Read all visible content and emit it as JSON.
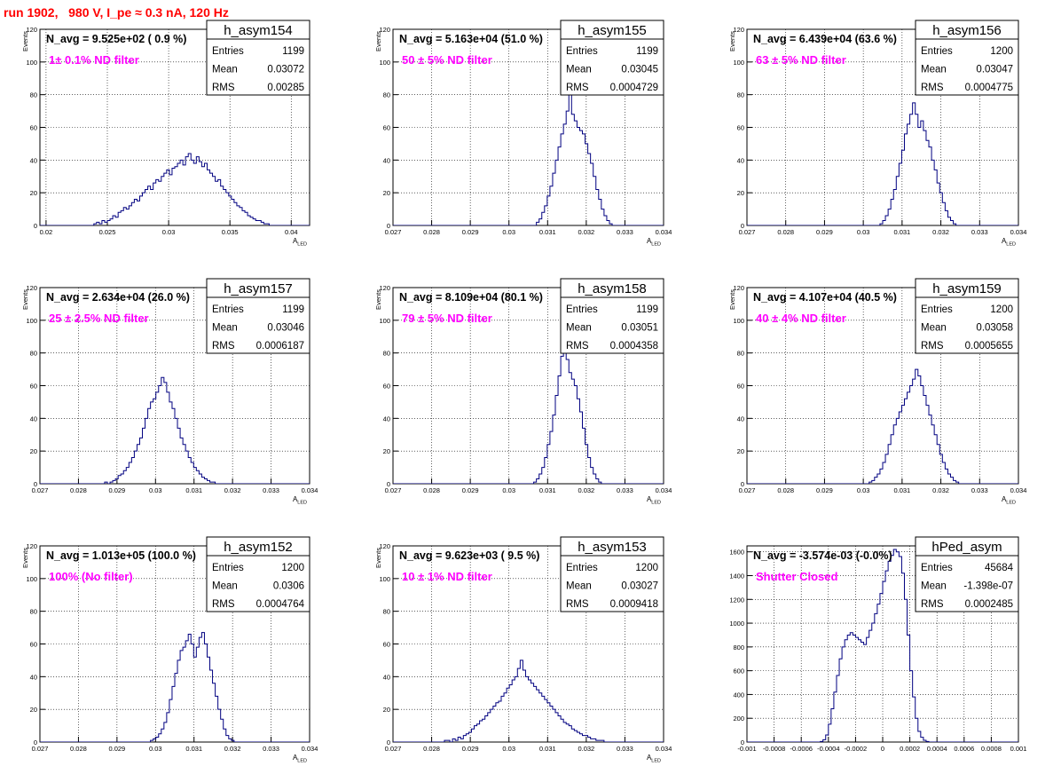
{
  "page": {
    "title": "run 1902,   980 V, I_pe ≈ 0.3 nA, 120 Hz"
  },
  "colors": {
    "histogram": "#000080",
    "filter_label": "#ff00ff",
    "title_text": "#ff0000",
    "grid": "#000000"
  },
  "chart_data": [
    {
      "type": "bar",
      "hist_name": "h_asym154",
      "stats": {
        "Entries": "1199",
        "Mean": "0.03072",
        "RMS": "0.00285"
      },
      "navg": "N_avg = 9.525e+02 ( 0.9 %)",
      "filter": "1± 0.1% ND filter",
      "xlabel": "A_LED",
      "ylabel": "Events",
      "xlim": [
        0.0195,
        0.0415
      ],
      "ylim": [
        0,
        120
      ],
      "xticks": [
        0.02,
        0.025,
        0.03,
        0.035,
        0.04
      ],
      "xtick_labels": [
        "0.02",
        "0.025",
        "0.03",
        "0.035",
        "0.04"
      ],
      "yticks": [
        0,
        20,
        40,
        60,
        80,
        100,
        120
      ],
      "xmin": 0.0195,
      "binwidth": 0.00022,
      "values": [
        0,
        0,
        0,
        0,
        0,
        0,
        0,
        0,
        0,
        0,
        0,
        0,
        0,
        0,
        0,
        0,
        0,
        0,
        0,
        0,
        1,
        2,
        1,
        3,
        2,
        3,
        4,
        6,
        5,
        8,
        9,
        11,
        10,
        12,
        14,
        16,
        15,
        18,
        20,
        22,
        24,
        22,
        26,
        28,
        27,
        30,
        32,
        34,
        31,
        35,
        36,
        38,
        40,
        37,
        42,
        44,
        40,
        38,
        42,
        39,
        36,
        38,
        34,
        32,
        30,
        27,
        28,
        24,
        22,
        20,
        18,
        16,
        14,
        12,
        11,
        9,
        8,
        6,
        5,
        4,
        3,
        3,
        2,
        1,
        1,
        0,
        0,
        0,
        0,
        0,
        0,
        0,
        0,
        0,
        0,
        0,
        0,
        0,
        0,
        0
      ]
    },
    {
      "type": "bar",
      "hist_name": "h_asym155",
      "stats": {
        "Entries": "1199",
        "Mean": "0.03045",
        "RMS": "0.0004729"
      },
      "navg": "N_avg = 5.163e+04 (51.0 %)",
      "filter": "50 ± 5% ND filter",
      "xlabel": "A_LED",
      "ylabel": "Events",
      "xlim": [
        0.027,
        0.034
      ],
      "ylim": [
        0,
        120
      ],
      "xticks": [
        0.027,
        0.028,
        0.029,
        0.03,
        0.031,
        0.032,
        0.033,
        0.034
      ],
      "xtick_labels": [
        "0.027",
        "0.028",
        "0.029",
        "0.03",
        "0.031",
        "0.032",
        "0.033",
        "0.034"
      ],
      "yticks": [
        0,
        20,
        40,
        60,
        80,
        100,
        120
      ],
      "xmin": 0.027,
      "binwidth": 7e-05,
      "values": [
        0,
        0,
        0,
        0,
        0,
        0,
        0,
        0,
        0,
        0,
        0,
        0,
        0,
        0,
        0,
        0,
        0,
        0,
        0,
        0,
        0,
        0,
        0,
        0,
        0,
        0,
        0,
        0,
        0,
        0,
        0,
        0,
        0,
        0,
        0,
        0,
        0,
        0,
        0,
        0,
        0,
        0,
        0,
        0,
        0,
        0,
        0,
        0,
        0,
        0,
        0,
        0,
        0,
        2,
        4,
        8,
        12,
        18,
        24,
        32,
        40,
        48,
        56,
        62,
        70,
        87,
        68,
        64,
        60,
        58,
        56,
        50,
        44,
        38,
        30,
        22,
        16,
        10,
        6,
        3,
        1,
        0,
        0,
        0,
        0,
        0,
        0,
        0,
        0,
        0,
        0,
        0,
        0,
        0,
        0,
        0,
        0,
        0,
        0,
        0
      ]
    },
    {
      "type": "bar",
      "hist_name": "h_asym156",
      "stats": {
        "Entries": "1200",
        "Mean": "0.03047",
        "RMS": "0.0004775"
      },
      "navg": "N_avg = 6.439e+04 (63.6 %)",
      "filter": "63 ± 5% ND filter",
      "xlabel": "A_LED",
      "ylabel": "Events",
      "xlim": [
        0.027,
        0.034
      ],
      "ylim": [
        0,
        120
      ],
      "xticks": [
        0.027,
        0.028,
        0.029,
        0.03,
        0.031,
        0.032,
        0.033,
        0.034
      ],
      "xtick_labels": [
        "0.027",
        "0.028",
        "0.029",
        "0.03",
        "0.031",
        "0.032",
        "0.033",
        "0.034"
      ],
      "yticks": [
        0,
        20,
        40,
        60,
        80,
        100,
        120
      ],
      "xmin": 0.027,
      "binwidth": 7e-05,
      "values": [
        0,
        0,
        0,
        0,
        0,
        0,
        0,
        0,
        0,
        0,
        0,
        0,
        0,
        0,
        0,
        0,
        0,
        0,
        0,
        0,
        0,
        0,
        0,
        0,
        0,
        0,
        0,
        0,
        0,
        0,
        0,
        0,
        0,
        0,
        0,
        0,
        0,
        0,
        0,
        0,
        0,
        0,
        0,
        0,
        0,
        0,
        0,
        0,
        0,
        1,
        3,
        6,
        10,
        16,
        22,
        30,
        38,
        46,
        56,
        62,
        68,
        75,
        68,
        60,
        64,
        58,
        52,
        48,
        40,
        34,
        26,
        20,
        14,
        9,
        5,
        3,
        1,
        0,
        0,
        0,
        0,
        0,
        0,
        0,
        0,
        0,
        0,
        0,
        0,
        0,
        0,
        0,
        0,
        0,
        0,
        0,
        0,
        0,
        0,
        0
      ]
    },
    {
      "type": "bar",
      "hist_name": "h_asym157",
      "stats": {
        "Entries": "1199",
        "Mean": "0.03046",
        "RMS": "0.0006187"
      },
      "navg": "N_avg = 2.634e+04 (26.0 %)",
      "filter": "25 ± 2.5% ND filter",
      "xlabel": "A_LED",
      "ylabel": "Events",
      "xlim": [
        0.027,
        0.034
      ],
      "ylim": [
        0,
        120
      ],
      "xticks": [
        0.027,
        0.028,
        0.029,
        0.03,
        0.031,
        0.032,
        0.033,
        0.034
      ],
      "xtick_labels": [
        "0.027",
        "0.028",
        "0.029",
        "0.03",
        "0.031",
        "0.032",
        "0.033",
        "0.034"
      ],
      "yticks": [
        0,
        20,
        40,
        60,
        80,
        100,
        120
      ],
      "xmin": 0.027,
      "binwidth": 7e-05,
      "values": [
        0,
        0,
        0,
        0,
        0,
        0,
        0,
        0,
        0,
        0,
        0,
        0,
        0,
        0,
        0,
        0,
        0,
        0,
        0,
        0,
        0,
        0,
        0,
        0,
        1,
        0,
        1,
        2,
        3,
        5,
        6,
        8,
        10,
        13,
        16,
        20,
        24,
        28,
        34,
        40,
        46,
        50,
        52,
        56,
        60,
        65,
        62,
        56,
        50,
        46,
        40,
        34,
        28,
        24,
        20,
        16,
        13,
        10,
        8,
        6,
        4,
        3,
        2,
        1,
        1,
        0,
        0,
        0,
        0,
        0,
        0,
        0,
        0,
        0,
        0,
        0,
        0,
        0,
        0,
        0,
        0,
        0,
        0,
        0,
        0,
        0,
        0,
        0,
        0,
        0,
        0,
        0,
        0,
        0,
        0,
        0,
        0,
        0,
        0,
        0
      ]
    },
    {
      "type": "bar",
      "hist_name": "h_asym158",
      "stats": {
        "Entries": "1199",
        "Mean": "0.03051",
        "RMS": "0.0004358"
      },
      "navg": "N_avg = 8.109e+04 (80.1 %)",
      "filter": "79 ± 5% ND filter",
      "xlabel": "A_LED",
      "ylabel": "Events",
      "xlim": [
        0.027,
        0.034
      ],
      "ylim": [
        0,
        120
      ],
      "xticks": [
        0.027,
        0.028,
        0.029,
        0.03,
        0.031,
        0.032,
        0.033,
        0.034
      ],
      "xtick_labels": [
        "0.027",
        "0.028",
        "0.029",
        "0.03",
        "0.031",
        "0.032",
        "0.033",
        "0.034"
      ],
      "yticks": [
        0,
        20,
        40,
        60,
        80,
        100,
        120
      ],
      "xmin": 0.027,
      "binwidth": 7e-05,
      "values": [
        0,
        0,
        0,
        0,
        0,
        0,
        0,
        0,
        0,
        0,
        0,
        0,
        0,
        0,
        0,
        0,
        0,
        0,
        0,
        0,
        0,
        0,
        0,
        0,
        0,
        0,
        0,
        0,
        0,
        0,
        0,
        0,
        0,
        0,
        0,
        0,
        0,
        0,
        0,
        0,
        0,
        0,
        0,
        0,
        0,
        0,
        0,
        0,
        0,
        0,
        0,
        0,
        1,
        3,
        6,
        10,
        16,
        24,
        32,
        42,
        54,
        66,
        78,
        89,
        76,
        68,
        64,
        60,
        52,
        44,
        34,
        24,
        16,
        10,
        6,
        3,
        1,
        0,
        0,
        0,
        0,
        0,
        0,
        0,
        0,
        0,
        0,
        0,
        0,
        0,
        0,
        0,
        0,
        0,
        0,
        0,
        0,
        0,
        0,
        0
      ]
    },
    {
      "type": "bar",
      "hist_name": "h_asym159",
      "stats": {
        "Entries": "1200",
        "Mean": "0.03058",
        "RMS": "0.0005655"
      },
      "navg": "N_avg = 4.107e+04 (40.5 %)",
      "filter": "40 ± 4% ND filter",
      "xlabel": "A_LED",
      "ylabel": "Events",
      "xlim": [
        0.027,
        0.034
      ],
      "ylim": [
        0,
        120
      ],
      "xticks": [
        0.027,
        0.028,
        0.029,
        0.03,
        0.031,
        0.032,
        0.033,
        0.034
      ],
      "xtick_labels": [
        "0.027",
        "0.028",
        "0.029",
        "0.03",
        "0.031",
        "0.032",
        "0.033",
        "0.034"
      ],
      "yticks": [
        0,
        20,
        40,
        60,
        80,
        100,
        120
      ],
      "xmin": 0.027,
      "binwidth": 7e-05,
      "values": [
        0,
        0,
        0,
        0,
        0,
        0,
        0,
        0,
        0,
        0,
        0,
        0,
        0,
        0,
        0,
        0,
        0,
        0,
        0,
        0,
        0,
        0,
        0,
        0,
        0,
        0,
        0,
        0,
        0,
        0,
        0,
        0,
        0,
        0,
        0,
        0,
        0,
        0,
        0,
        0,
        0,
        0,
        0,
        0,
        0,
        1,
        2,
        4,
        6,
        9,
        13,
        18,
        24,
        30,
        36,
        40,
        44,
        48,
        52,
        56,
        60,
        64,
        70,
        66,
        60,
        54,
        48,
        42,
        36,
        30,
        24,
        18,
        13,
        9,
        6,
        4,
        2,
        1,
        0,
        0,
        0,
        0,
        0,
        0,
        0,
        0,
        0,
        0,
        0,
        0,
        0,
        0,
        0,
        0,
        0,
        0,
        0,
        0,
        0,
        0
      ]
    },
    {
      "type": "bar",
      "hist_name": "h_asym152",
      "stats": {
        "Entries": "1200",
        "Mean": "0.0306",
        "RMS": "0.0004764"
      },
      "navg": "N_avg = 1.013e+05 (100.0 %)",
      "filter": "100% (No filter)",
      "xlabel": "A_LED",
      "ylabel": "Events",
      "xlim": [
        0.027,
        0.034
      ],
      "ylim": [
        0,
        120
      ],
      "xticks": [
        0.027,
        0.028,
        0.029,
        0.03,
        0.031,
        0.032,
        0.033,
        0.034
      ],
      "xtick_labels": [
        "0.027",
        "0.028",
        "0.029",
        "0.03",
        "0.031",
        "0.032",
        "0.033",
        "0.034"
      ],
      "yticks": [
        0,
        20,
        40,
        60,
        80,
        100,
        120
      ],
      "xmin": 0.027,
      "binwidth": 7e-05,
      "values": [
        0,
        0,
        0,
        0,
        0,
        0,
        0,
        0,
        0,
        0,
        0,
        0,
        0,
        0,
        0,
        0,
        0,
        0,
        0,
        0,
        0,
        0,
        0,
        0,
        0,
        0,
        0,
        0,
        0,
        0,
        0,
        0,
        0,
        0,
        0,
        0,
        0,
        0,
        0,
        0,
        0,
        1,
        2,
        3,
        5,
        8,
        12,
        18,
        26,
        34,
        42,
        50,
        56,
        58,
        62,
        66,
        60,
        52,
        58,
        64,
        67,
        60,
        52,
        44,
        36,
        28,
        20,
        14,
        8,
        4,
        2,
        1,
        0,
        0,
        0,
        0,
        0,
        0,
        0,
        0,
        0,
        0,
        0,
        0,
        0,
        0,
        0,
        0,
        0,
        0,
        0,
        0,
        0,
        0,
        0,
        0,
        0,
        0,
        0,
        0
      ]
    },
    {
      "type": "bar",
      "hist_name": "h_asym153",
      "stats": {
        "Entries": "1200",
        "Mean": "0.03027",
        "RMS": "0.0009418"
      },
      "navg": "N_avg = 9.623e+03 ( 9.5 %)",
      "filter": "10 ± 1% ND filter",
      "xlabel": "A_LED",
      "ylabel": "Events",
      "xlim": [
        0.027,
        0.034
      ],
      "ylim": [
        0,
        120
      ],
      "xticks": [
        0.027,
        0.028,
        0.029,
        0.03,
        0.031,
        0.032,
        0.033,
        0.034
      ],
      "xtick_labels": [
        "0.027",
        "0.028",
        "0.029",
        "0.03",
        "0.031",
        "0.032",
        "0.033",
        "0.034"
      ],
      "yticks": [
        0,
        20,
        40,
        60,
        80,
        100,
        120
      ],
      "xmin": 0.027,
      "binwidth": 7e-05,
      "values": [
        0,
        0,
        0,
        0,
        0,
        0,
        0,
        0,
        0,
        0,
        0,
        0,
        0,
        0,
        0,
        0,
        0,
        0,
        0,
        1,
        1,
        0,
        2,
        1,
        3,
        2,
        4,
        5,
        6,
        8,
        10,
        11,
        13,
        14,
        16,
        18,
        20,
        22,
        24,
        25,
        28,
        30,
        33,
        35,
        38,
        40,
        45,
        50,
        44,
        40,
        38,
        36,
        34,
        32,
        30,
        28,
        26,
        24,
        22,
        20,
        18,
        16,
        14,
        12,
        11,
        10,
        8,
        7,
        6,
        5,
        4,
        4,
        3,
        2,
        2,
        1,
        1,
        1,
        0,
        0,
        0,
        0,
        0,
        0,
        0,
        0,
        0,
        0,
        0,
        0,
        0,
        0,
        0,
        0,
        0,
        0,
        0,
        0,
        0,
        0
      ]
    },
    {
      "type": "bar",
      "hist_name": "hPed_asym",
      "stats": {
        "Entries": "45684",
        "Mean": "-1.398e-07",
        "RMS": "0.0002485"
      },
      "navg": "N_avg = -3.574e-03 (-0.0%)",
      "filter": "Shutter Closed",
      "xlabel": "",
      "ylabel": "",
      "xlim": [
        -0.001,
        0.001
      ],
      "ylim": [
        0,
        1650
      ],
      "xticks": [
        -0.001,
        -0.0008,
        -0.0006,
        -0.0004,
        -0.0002,
        0,
        0.0002,
        0.0004,
        0.0006,
        0.0008,
        0.001
      ],
      "xtick_labels": [
        "-0.001",
        "-0.0008",
        "-0.0006",
        "-0.0004",
        "-0.0002",
        "0",
        "0.0002",
        "0.0004",
        "0.0006",
        "0.0008",
        "0.001"
      ],
      "yticks": [
        0,
        200,
        400,
        600,
        800,
        1000,
        1200,
        1400,
        1600
      ],
      "xmin": -0.001,
      "binwidth": 2e-05,
      "values": [
        0,
        0,
        0,
        0,
        0,
        0,
        0,
        0,
        0,
        0,
        0,
        0,
        0,
        0,
        0,
        0,
        0,
        0,
        0,
        0,
        0,
        0,
        0,
        0,
        0,
        0,
        0,
        5,
        20,
        60,
        150,
        280,
        420,
        560,
        700,
        800,
        860,
        900,
        920,
        900,
        880,
        860,
        840,
        820,
        880,
        940,
        1000,
        1080,
        1160,
        1250,
        1350,
        1440,
        1520,
        1570,
        1620,
        1600,
        1560,
        1420,
        1200,
        900,
        600,
        380,
        200,
        90,
        40,
        15,
        5,
        0,
        0,
        0,
        0,
        0,
        0,
        0,
        0,
        0,
        0,
        0,
        0,
        0,
        0,
        0,
        0,
        0,
        0,
        0,
        0,
        0,
        0,
        0,
        0,
        0,
        0,
        0,
        0,
        0,
        0,
        0,
        0,
        0
      ]
    }
  ]
}
